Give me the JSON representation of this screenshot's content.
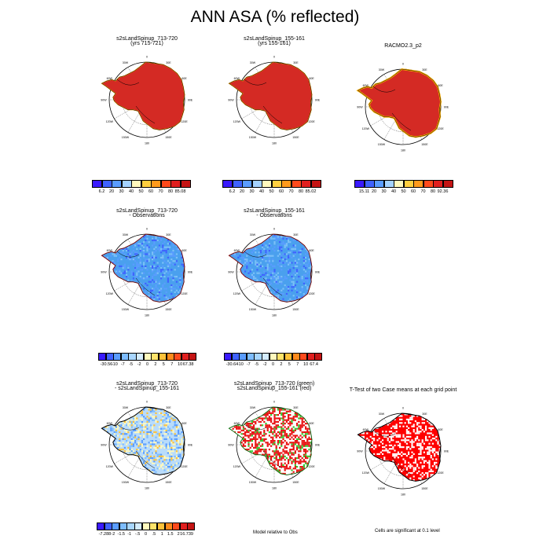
{
  "title": "ANN ASA (% reflected)",
  "polar_grid": {
    "longitude_labels": [
      "0",
      "30E",
      "60E",
      "90E",
      "120E",
      "150E",
      "180",
      "150W",
      "120W",
      "90W",
      "60W",
      "30W"
    ]
  },
  "colors": {
    "sequential": [
      "#3a1aff",
      "#3f62ff",
      "#5a9cff",
      "#a4d2ff",
      "#fff9bd",
      "#ffcf3f",
      "#ff9a1c",
      "#ff4a1c",
      "#e01f1f",
      "#c41414"
    ],
    "difference": [
      "#3a1aff",
      "#3f62ff",
      "#5a9cff",
      "#7dbcff",
      "#a8d6ff",
      "#d4ecff",
      "#fff9bd",
      "#ffe36a",
      "#ffc23a",
      "#ff8a1c",
      "#ff4a1c",
      "#e01f1f",
      "#c41414"
    ],
    "ice_red": "#d42a24",
    "ice_blue": "#4aa0ee",
    "ice_blue_light": "#7cc0f7",
    "ttest_red": "#ff0000",
    "green": "#33cc33"
  },
  "panels": [
    {
      "id": "p1",
      "title_lines": [
        "s2sLandSpinup_713-720",
        "(yrs 715-721)"
      ],
      "colorbar": {
        "labels": [
          "6.2",
          "20",
          "30",
          "40",
          "50",
          "60",
          "70",
          "80",
          "85.08"
        ],
        "scheme": "sequential"
      }
    },
    {
      "id": "p2",
      "title_lines": [
        "s2sLandSpinup_155-161",
        "(yrs 155-161)"
      ],
      "colorbar": {
        "labels": [
          "6.2",
          "20",
          "30",
          "40",
          "50",
          "60",
          "70",
          "80",
          "85.02"
        ],
        "scheme": "sequential"
      }
    },
    {
      "id": "p3",
      "title_lines": [
        "RACMO2.3_p2"
      ],
      "colorbar": {
        "labels": [
          "15.11",
          "20",
          "30",
          "40",
          "50",
          "60",
          "70",
          "80",
          "92.36"
        ],
        "scheme": "sequential"
      }
    },
    {
      "id": "p4",
      "title_lines": [
        "s2sLandSpinup_713-720",
        "- Observations"
      ],
      "colorbar": {
        "labels": [
          "-30.56",
          "-10",
          "-7",
          "-5",
          "-2",
          "0",
          "2",
          "5",
          "7",
          "10",
          "67.38"
        ],
        "scheme": "difference"
      }
    },
    {
      "id": "p5",
      "title_lines": [
        "s2sLandSpinup_155-161",
        "- Observations"
      ],
      "colorbar": {
        "labels": [
          "-30.64",
          "-10",
          "-7",
          "-5",
          "-2",
          "0",
          "2",
          "5",
          "7",
          "10",
          "67.4"
        ],
        "scheme": "difference"
      }
    },
    {
      "id": "p6",
      "title_lines": [
        "s2sLandSpinup_713-720",
        "- s2sLandSpinup_155-161"
      ],
      "colorbar": {
        "labels": [
          "-7.288",
          "-2",
          "-1.5",
          "-1",
          "-.5",
          "0",
          ".5",
          "1",
          "1.5",
          "2",
          "16.739"
        ],
        "scheme": "difference"
      }
    },
    {
      "id": "p7",
      "title_lines": [
        "s2sLandSpinup_713-720 (green)",
        "s2sLandSpinup_155-161 (red)"
      ]
    },
    {
      "id": "p8",
      "title_lines": [
        "T-Test of two Case means at each grid point"
      ]
    }
  ],
  "notes": {
    "model_relative": "Model relative to Obs",
    "significance": "Cells are significant at 0.1 level"
  },
  "chart_data": [
    {
      "type": "heatmap",
      "title": "s2sLandSpinup_713-720 (yrs 715-721)",
      "projection": "south polar stereographic",
      "colorbar_range": [
        6.2,
        85.08
      ],
      "colorbar_levels": [
        20,
        30,
        40,
        50,
        60,
        70,
        80
      ],
      "dominant_value_range": [
        80,
        85.08
      ]
    },
    {
      "type": "heatmap",
      "title": "s2sLandSpinup_155-161 (yrs 155-161)",
      "projection": "south polar stereographic",
      "colorbar_range": [
        6.2,
        85.02
      ],
      "colorbar_levels": [
        20,
        30,
        40,
        50,
        60,
        70,
        80
      ],
      "dominant_value_range": [
        80,
        85.02
      ]
    },
    {
      "type": "heatmap",
      "title": "RACMO2.3_p2",
      "projection": "south polar stereographic",
      "colorbar_range": [
        15.11,
        92.36
      ],
      "colorbar_levels": [
        20,
        30,
        40,
        50,
        60,
        70,
        80
      ],
      "dominant_value_range": [
        80,
        92.36
      ]
    },
    {
      "type": "heatmap",
      "title": "s2sLandSpinup_713-720 - Observations",
      "projection": "south polar stereographic",
      "colorbar_range": [
        -30.56,
        67.38
      ],
      "colorbar_levels": [
        -10,
        -7,
        -5,
        -2,
        0,
        2,
        5,
        7,
        10
      ],
      "dominant_value_range": [
        -10,
        -2
      ]
    },
    {
      "type": "heatmap",
      "title": "s2sLandSpinup_155-161 - Observations",
      "projection": "south polar stereographic",
      "colorbar_range": [
        -30.64,
        67.4
      ],
      "colorbar_levels": [
        -10,
        -7,
        -5,
        -2,
        0,
        2,
        5,
        7,
        10
      ],
      "dominant_value_range": [
        -10,
        -2
      ]
    },
    {
      "type": "heatmap",
      "title": "s2sLandSpinup_713-720 - s2sLandSpinup_155-161",
      "projection": "south polar stereographic",
      "colorbar_range": [
        -7.288,
        16.739
      ],
      "colorbar_levels": [
        -2,
        -1.5,
        -1,
        -0.5,
        0,
        0.5,
        1,
        1.5,
        2
      ],
      "dominant_value_range": [
        -0.5,
        0.5
      ]
    },
    {
      "type": "heatmap",
      "title": "s2sLandSpinup_713-720 (green) s2sLandSpinup_155-161 (red)",
      "projection": "south polar stereographic",
      "legend": [
        "green: s2sLandSpinup_713-720",
        "red: s2sLandSpinup_155-161"
      ]
    },
    {
      "type": "heatmap",
      "title": "T-Test of two Case means at each grid point",
      "projection": "south polar stereographic",
      "significance_level": 0.1
    }
  ]
}
